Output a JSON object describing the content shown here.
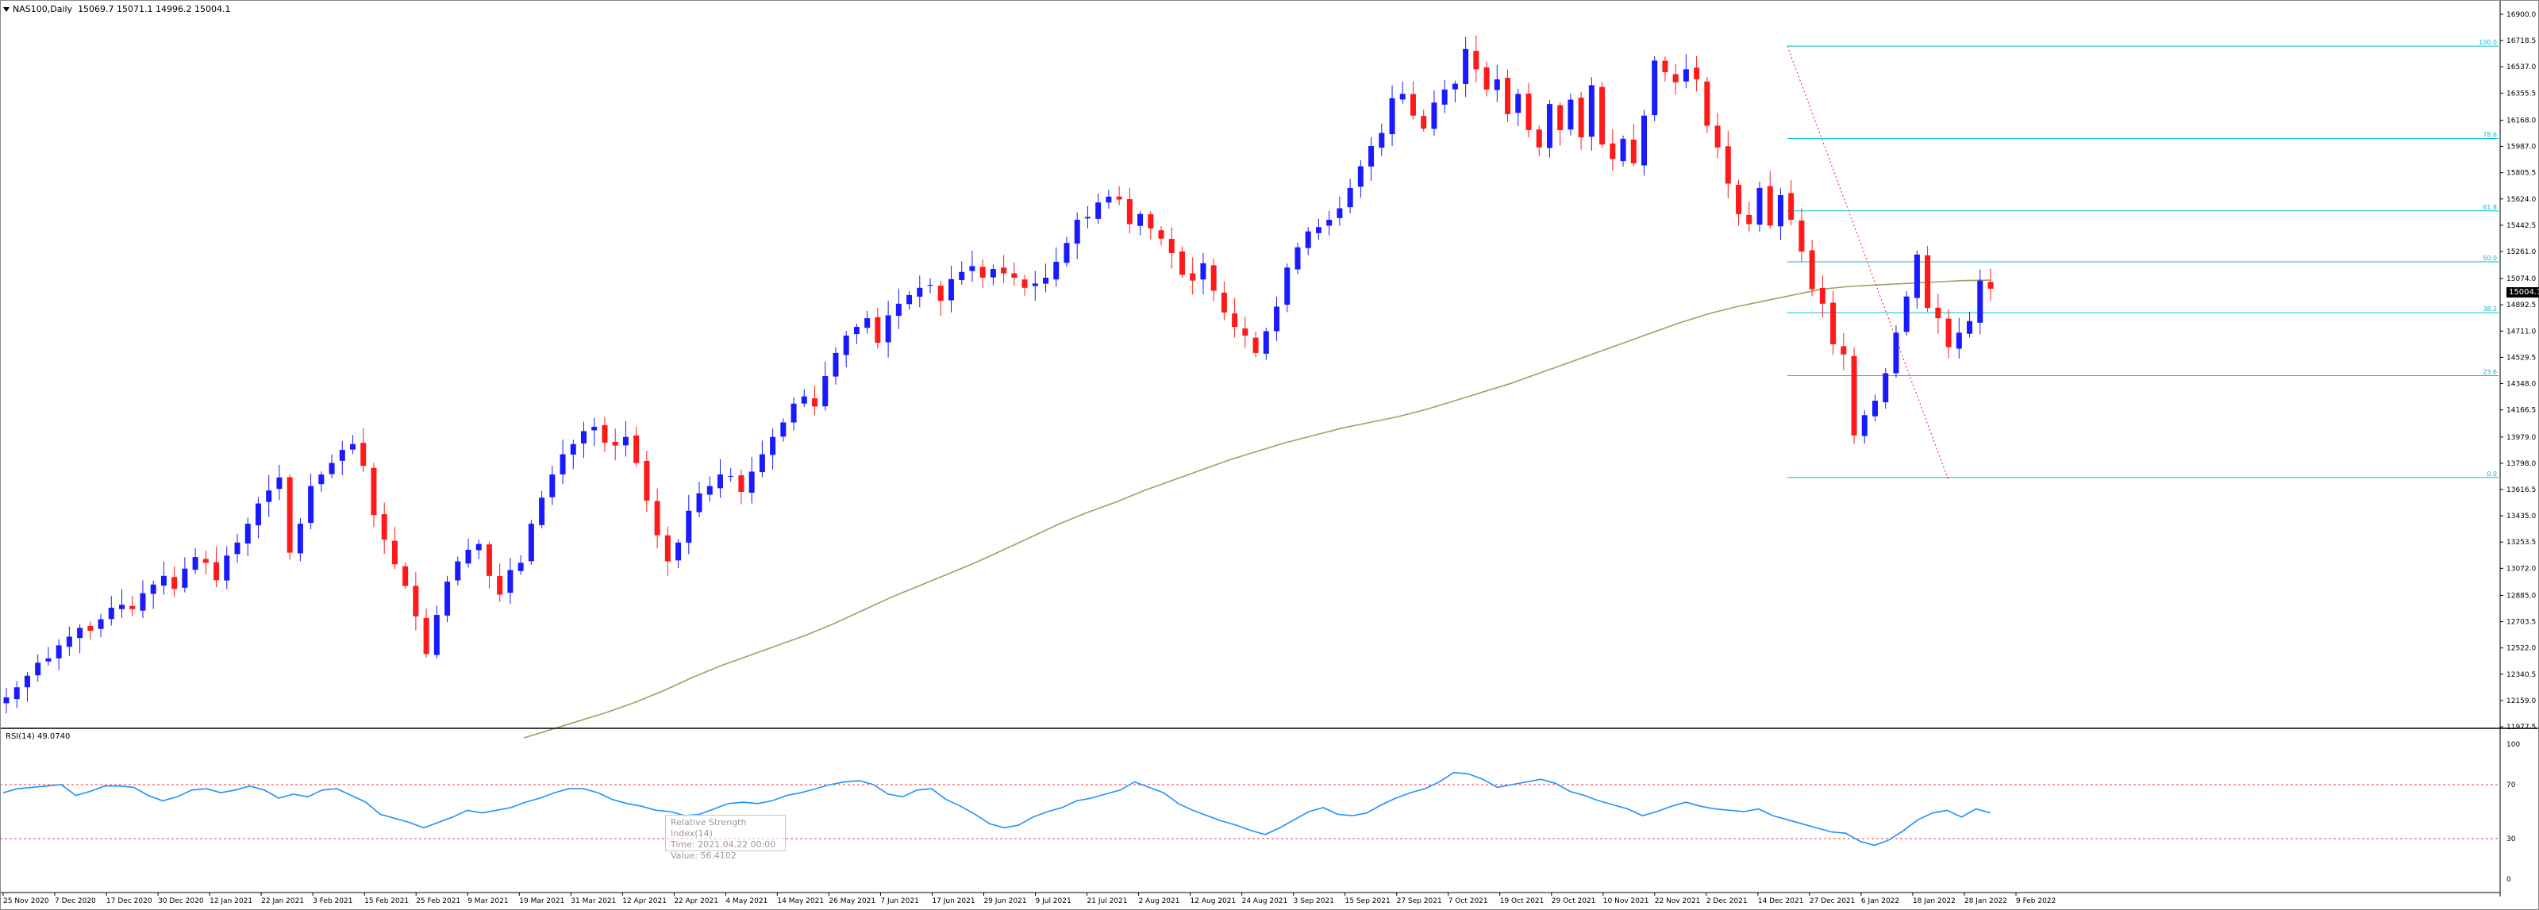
{
  "header": {
    "symbol": "NAS100,Daily",
    "ohlc": "15069.7 15071.1 14996.2 15004.1"
  },
  "indicator": {
    "label": "RSI(14) 49.0740",
    "levels": [
      "100",
      "70",
      "30",
      "0"
    ]
  },
  "tooltip": {
    "line1": "Relative Strength Index(14)",
    "line2": "Time: 2021.04.22 00:00",
    "line3": "Value: 56.4102"
  },
  "current_price": "15004.1",
  "fib_labels": [
    "100.0",
    "78.6",
    "61.8",
    "50.0",
    "38.2",
    "23.6",
    "0.0"
  ],
  "colors": {
    "bull": "#1a1aff",
    "bear": "#ff1a1a",
    "ma": "#a0a060",
    "fib": "#00bcd4",
    "rsi": "#1e90ff",
    "rsi_levels": "#ff3030"
  },
  "chart_data": {
    "type": "line",
    "price_axis": [
      "16900.0",
      "16718.5",
      "16537.0",
      "16355.5",
      "16168.0",
      "15987.0",
      "15805.5",
      "15624.0",
      "15442.5",
      "15261.0",
      "15074.0",
      "14892.5",
      "14711.0",
      "14529.5",
      "14348.0",
      "14166.5",
      "13979.0",
      "13798.0",
      "13616.5",
      "13435.0",
      "13253.5",
      "13072.0",
      "12885.0",
      "12703.5",
      "12522.0",
      "12340.5",
      "12159.0",
      "11977.5"
    ],
    "date_axis": [
      "25 Nov 2020",
      "7 Dec 2020",
      "17 Dec 2020",
      "30 Dec 2020",
      "12 Jan 2021",
      "22 Jan 2021",
      "3 Feb 2021",
      "15 Feb 2021",
      "25 Feb 2021",
      "9 Mar 2021",
      "19 Mar 2021",
      "31 Mar 2021",
      "12 Apr 2021",
      "22 Apr 2021",
      "4 May 2021",
      "14 May 2021",
      "26 May 2021",
      "7 Jun 2021",
      "17 Jun 2021",
      "29 Jun 2021",
      "9 Jul 2021",
      "21 Jul 2021",
      "2 Aug 2021",
      "12 Aug 2021",
      "24 Aug 2021",
      "3 Sep 2021",
      "15 Sep 2021",
      "27 Sep 2021",
      "7 Oct 2021",
      "19 Oct 2021",
      "29 Oct 2021",
      "10 Nov 2021",
      "22 Nov 2021",
      "2 Dec 2021",
      "14 Dec 2021",
      "27 Dec 2021",
      "6 Jan 2022",
      "18 Jan 2022",
      "28 Jan 2022",
      "9 Feb 2022"
    ],
    "ylim": [
      11977.5,
      16900.0
    ],
    "series": [
      {
        "values": [
          12180,
          12250,
          12330,
          12420,
          12450,
          12540,
          12600,
          12660,
          12640,
          12720,
          12800,
          12820,
          12790,
          12900,
          12960,
          13020,
          12930,
          13070,
          13150,
          13110,
          12990,
          13160,
          13250,
          13380,
          13520,
          13610,
          13700,
          13180,
          13380,
          13640,
          13720,
          13800,
          13890,
          13930,
          13780,
          13440,
          13270,
          13100,
          12950,
          12740,
          12480,
          12750,
          12980,
          13120,
          13200,
          13240,
          13020,
          12890,
          13060,
          13110,
          13380,
          13560,
          13720,
          13860,
          13930,
          14020,
          14050,
          13940,
          13920,
          13980,
          13800,
          13540,
          13300,
          13120,
          13250,
          13470,
          13590,
          13640,
          13720,
          13710,
          13600,
          13740,
          13860,
          13980,
          14080,
          14210,
          14260,
          14190,
          14400,
          14560,
          14680,
          14740,
          14800,
          14630,
          14820,
          14900,
          14960,
          15010,
          15030,
          14920,
          15070,
          15120,
          15160,
          15080,
          15140,
          15110,
          15080,
          15010,
          15040,
          15080,
          15190,
          15320,
          15480,
          15500,
          15600,
          15640,
          15620,
          15450,
          15520,
          15420,
          15350,
          15250,
          15100,
          15060,
          15180,
          14990,
          14840,
          14740,
          14680,
          14560,
          14710,
          14880,
          15150,
          15290,
          15400,
          15430,
          15480,
          15560,
          15700,
          15850,
          15990,
          16080,
          16320,
          16350,
          16200,
          16110,
          16290,
          16380,
          16420,
          16660,
          16520,
          16380,
          16450,
          16210,
          16350,
          16100,
          15980,
          16280,
          16100,
          16310,
          16050,
          16410,
          16000,
          15900,
          16040,
          15870,
          16200,
          16580,
          16500,
          16430,
          16520,
          16450,
          16130,
          15980,
          15730,
          15520,
          15450,
          15700,
          15440,
          15650,
          15480,
          15260,
          15000,
          14900,
          14620,
          14550,
          13990,
          14130,
          14230,
          14420,
          14700,
          14950,
          15240,
          14870,
          14800,
          14600,
          14700,
          14780,
          15060,
          15004
        ]
      },
      {
        "name": "",
        "values": [
          11900,
          11960,
          12020,
          12080,
          12150,
          12230,
          12320,
          12400,
          12470,
          12540,
          12610,
          12690,
          12780,
          12870,
          12950,
          13030,
          13110,
          13200,
          13290,
          13380,
          13460,
          13530,
          13610,
          13680,
          13750,
          13820,
          13880,
          13940,
          13990,
          14040,
          14080,
          14120,
          14170,
          14230,
          14290,
          14350,
          14420,
          14490,
          14560,
          14630,
          14700,
          14770,
          14830,
          14880,
          14920,
          14960,
          15000,
          15020,
          15030,
          15040,
          15050,
          15060,
          15063
        ]
      },
      {
        "name": "RSI(14)",
        "values": [
          64,
          67,
          68,
          69,
          70,
          62,
          65,
          69,
          69,
          68,
          62,
          58,
          61,
          66,
          67,
          64,
          66,
          69,
          66,
          60,
          63,
          61,
          66,
          67,
          62,
          57,
          48,
          45,
          42,
          38,
          42,
          46,
          51,
          49,
          51,
          53,
          57,
          60,
          64,
          67,
          67,
          64,
          59,
          56,
          54,
          51,
          50,
          47,
          48,
          52,
          56,
          57,
          56,
          58,
          62,
          64,
          67,
          70,
          72,
          73,
          70,
          63,
          61,
          66,
          67,
          59,
          54,
          48,
          41,
          38,
          40,
          46,
          50,
          53,
          58,
          60,
          63,
          66,
          72,
          68,
          64,
          56,
          51,
          47,
          43,
          40,
          36,
          33,
          38,
          44,
          50,
          53,
          48,
          47,
          49,
          55,
          60,
          64,
          67,
          72,
          79,
          78,
          74,
          68,
          70,
          72,
          74,
          71,
          65,
          62,
          58,
          55,
          52,
          47,
          50,
          54,
          57,
          54,
          52,
          51,
          50,
          52,
          47,
          44,
          41,
          38,
          35,
          34,
          28,
          25,
          29,
          36,
          44,
          49,
          51,
          46,
          52,
          49
        ]
      }
    ]
  }
}
